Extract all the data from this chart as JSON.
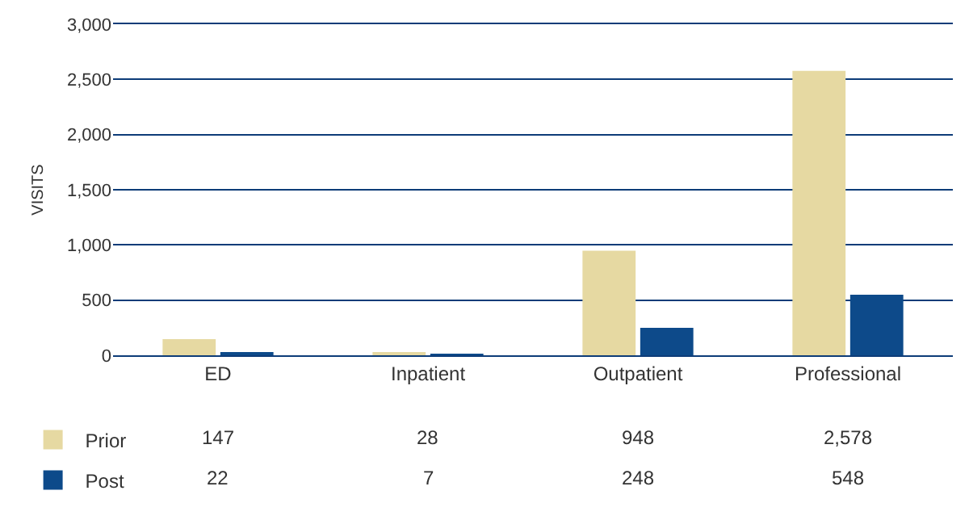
{
  "chart_data": {
    "type": "bar",
    "ylabel": "VISITS",
    "categories": [
      "ED",
      "Inpatient",
      "Outpatient",
      "Professional"
    ],
    "series": [
      {
        "name": "Prior",
        "color": "#e6d9a2",
        "values": [
          147,
          28,
          948,
          2578
        ],
        "value_labels": [
          "147",
          "28",
          "948",
          "2,578"
        ]
      },
      {
        "name": "Post",
        "color": "#0d4a8a",
        "values": [
          22,
          7,
          248,
          548
        ],
        "value_labels": [
          "22",
          "7",
          "248",
          "548"
        ]
      }
    ],
    "ylim": [
      0,
      3000
    ],
    "yticks": [
      {
        "value": 0,
        "label": "0"
      },
      {
        "value": 500,
        "label": "500"
      },
      {
        "value": 1000,
        "label": "1,000"
      },
      {
        "value": 1500,
        "label": "1,500"
      },
      {
        "value": 2000,
        "label": "2,000"
      },
      {
        "value": 2500,
        "label": "2,500"
      },
      {
        "value": 3000,
        "label": "3,000"
      }
    ],
    "grid": "y",
    "legend": "bottom left"
  }
}
